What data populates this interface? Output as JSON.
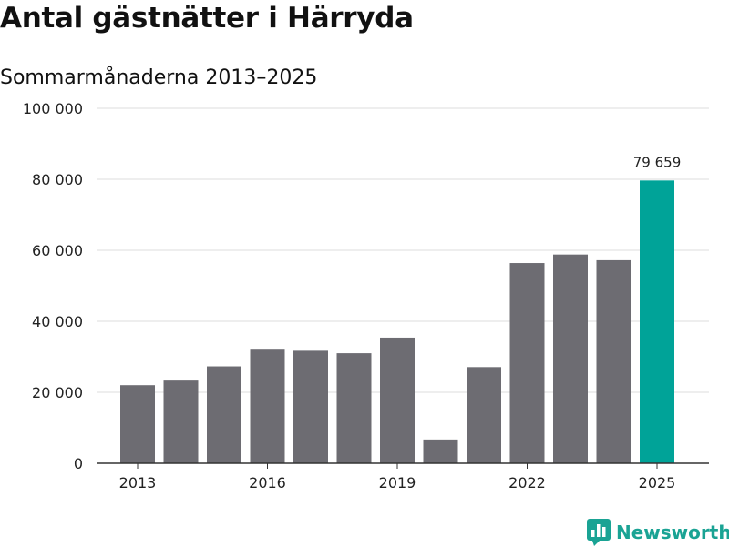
{
  "header": {
    "title": "Antal gästnätter i Härryda",
    "subtitle": "Sommarmånaderna 2013–2025"
  },
  "brand": {
    "name": "Newsworthy",
    "icon": "bar-chart-icon",
    "color": "#1aa394"
  },
  "colors": {
    "bar": "#6d6c72",
    "highlight": "#00a398",
    "grid": "#dedede",
    "axis": "#333333"
  },
  "chart_data": {
    "type": "bar",
    "categories": [
      "2013",
      "2014",
      "2015",
      "2016",
      "2017",
      "2018",
      "2019",
      "2020",
      "2021",
      "2022",
      "2023",
      "2024",
      "2025"
    ],
    "values": [
      22000,
      23300,
      27300,
      32000,
      31700,
      31000,
      35400,
      6700,
      27100,
      56400,
      58800,
      57200,
      79659
    ],
    "x_tick_labels": [
      "2013",
      "2016",
      "2019",
      "2022",
      "2025"
    ],
    "y_ticks": [
      0,
      20000,
      40000,
      60000,
      80000,
      100000
    ],
    "y_tick_labels": [
      "0",
      "20 000",
      "40 000",
      "60 000",
      "80 000",
      "100 000"
    ],
    "ylim": [
      0,
      100000
    ],
    "highlight_category": "2025",
    "data_labels": [
      {
        "category": "2025",
        "label": "79 659"
      }
    ],
    "grid": true,
    "title": "Antal gästnätter i Härryda",
    "subtitle": "Sommarmånaderna 2013–2025",
    "xlabel": "",
    "ylabel": ""
  }
}
